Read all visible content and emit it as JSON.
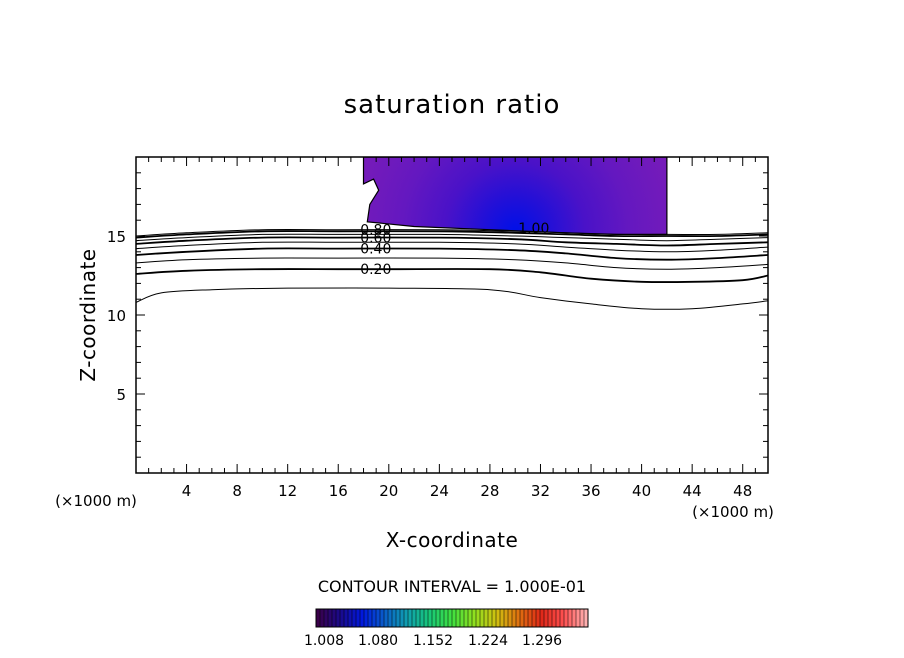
{
  "chart_data": {
    "type": "contour",
    "title": "saturation ratio",
    "xlabel": "X-coordinate",
    "ylabel": "Z-coordinate",
    "x_unit": "(×1000 m)",
    "z_unit": "(×1000 m)",
    "xlim": [
      0,
      50
    ],
    "ylim": [
      0,
      20
    ],
    "xticks": [
      4,
      8,
      12,
      16,
      20,
      24,
      28,
      32,
      36,
      40,
      44,
      48
    ],
    "yticks": [
      5,
      10,
      15
    ],
    "contour_interval_text": "CONTOUR INTERVAL = 1.000E-01",
    "contour_labels": [
      {
        "text": "0.80",
        "x": 17.5,
        "z": 15.4
      },
      {
        "text": "0.60",
        "x": 17.5,
        "z": 14.9
      },
      {
        "text": "0.40",
        "x": 17.5,
        "z": 14.2
      },
      {
        "text": "0.20",
        "x": 17.5,
        "z": 12.9
      },
      {
        "text": "1.00",
        "x": 30.0,
        "z": 15.5
      }
    ],
    "contour_lines": [
      {
        "level": 0.1,
        "points": [
          [
            0,
            10.8
          ],
          [
            2,
            11.4
          ],
          [
            6,
            11.6
          ],
          [
            12,
            11.7
          ],
          [
            20,
            11.7
          ],
          [
            28,
            11.6
          ],
          [
            32,
            11.1
          ],
          [
            36,
            10.7
          ],
          [
            40,
            10.4
          ],
          [
            44,
            10.4
          ],
          [
            48,
            10.7
          ],
          [
            50,
            10.9
          ]
        ]
      },
      {
        "level": 0.2,
        "points": [
          [
            0,
            12.6
          ],
          [
            4,
            12.8
          ],
          [
            10,
            12.9
          ],
          [
            16,
            12.9
          ],
          [
            20,
            12.9
          ],
          [
            28,
            12.9
          ],
          [
            32,
            12.7
          ],
          [
            36,
            12.3
          ],
          [
            40,
            12.1
          ],
          [
            44,
            12.1
          ],
          [
            48,
            12.2
          ],
          [
            50,
            12.5
          ]
        ]
      },
      {
        "level": 0.3,
        "points": [
          [
            0,
            13.3
          ],
          [
            4,
            13.5
          ],
          [
            10,
            13.6
          ],
          [
            16,
            13.6
          ],
          [
            24,
            13.6
          ],
          [
            30,
            13.5
          ],
          [
            34,
            13.3
          ],
          [
            38,
            13.0
          ],
          [
            42,
            12.9
          ],
          [
            46,
            13.0
          ],
          [
            50,
            13.2
          ]
        ]
      },
      {
        "level": 0.4,
        "points": [
          [
            0,
            13.8
          ],
          [
            4,
            14.0
          ],
          [
            10,
            14.2
          ],
          [
            16,
            14.2
          ],
          [
            24,
            14.2
          ],
          [
            30,
            14.1
          ],
          [
            34,
            13.9
          ],
          [
            38,
            13.6
          ],
          [
            42,
            13.5
          ],
          [
            46,
            13.6
          ],
          [
            50,
            13.8
          ]
        ]
      },
      {
        "level": 0.5,
        "points": [
          [
            0,
            14.2
          ],
          [
            4,
            14.4
          ],
          [
            10,
            14.6
          ],
          [
            16,
            14.6
          ],
          [
            24,
            14.6
          ],
          [
            30,
            14.5
          ],
          [
            34,
            14.3
          ],
          [
            38,
            14.1
          ],
          [
            42,
            14.0
          ],
          [
            46,
            14.1
          ],
          [
            50,
            14.3
          ]
        ]
      },
      {
        "level": 0.6,
        "points": [
          [
            0,
            14.5
          ],
          [
            4,
            14.7
          ],
          [
            10,
            14.9
          ],
          [
            16,
            14.9
          ],
          [
            24,
            14.9
          ],
          [
            30,
            14.8
          ],
          [
            34,
            14.6
          ],
          [
            38,
            14.5
          ],
          [
            42,
            14.4
          ],
          [
            46,
            14.5
          ],
          [
            50,
            14.6
          ]
        ]
      },
      {
        "level": 0.7,
        "points": [
          [
            0,
            14.7
          ],
          [
            4,
            14.9
          ],
          [
            10,
            15.1
          ],
          [
            16,
            15.1
          ],
          [
            24,
            15.1
          ],
          [
            30,
            15.0
          ],
          [
            34,
            14.9
          ],
          [
            38,
            14.8
          ],
          [
            42,
            14.7
          ],
          [
            46,
            14.8
          ],
          [
            50,
            14.9
          ]
        ]
      },
      {
        "level": 0.8,
        "points": [
          [
            0,
            14.9
          ],
          [
            4,
            15.1
          ],
          [
            10,
            15.3
          ],
          [
            16,
            15.3
          ],
          [
            24,
            15.3
          ],
          [
            30,
            15.2
          ],
          [
            34,
            15.1
          ],
          [
            38,
            15.0
          ],
          [
            42,
            15.0
          ],
          [
            46,
            15.0
          ],
          [
            50,
            15.1
          ]
        ]
      },
      {
        "level": 0.9,
        "points": [
          [
            0,
            15.0
          ],
          [
            4,
            15.2
          ],
          [
            10,
            15.4
          ],
          [
            16,
            15.4
          ],
          [
            24,
            15.4
          ],
          [
            30,
            15.3
          ],
          [
            34,
            15.2
          ],
          [
            38,
            15.1
          ],
          [
            42,
            15.1
          ],
          [
            46,
            15.1
          ],
          [
            50,
            15.2
          ]
        ]
      }
    ],
    "supersaturated_region": {
      "outline": [
        [
          18,
          20
        ],
        [
          18,
          18.3
        ],
        [
          18.8,
          18.6
        ],
        [
          19.2,
          17.9
        ],
        [
          18.5,
          17.0
        ],
        [
          18.3,
          15.9
        ],
        [
          22,
          15.6
        ],
        [
          28,
          15.4
        ],
        [
          34,
          15.2
        ],
        [
          38,
          15.1
        ],
        [
          42,
          15.1
        ],
        [
          42,
          20
        ]
      ],
      "core": [
        30,
        15.3
      ]
    },
    "colorbar": {
      "ticks": [
        "1.008",
        "1.080",
        "1.152",
        "1.224",
        "1.296"
      ],
      "colors": [
        "#3a004a",
        "#1a0a8c",
        "#0018e0",
        "#0a60c8",
        "#10a0b0",
        "#18c878",
        "#40e040",
        "#90e020",
        "#d0c010",
        "#e07010",
        "#e02818",
        "#ff5050",
        "#ffb0b0"
      ]
    }
  }
}
